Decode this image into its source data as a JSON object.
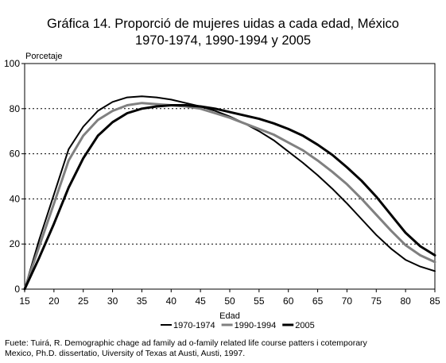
{
  "chart_data": {
    "type": "line",
    "title_line1": "Gráfica 14. Proporció de mujeres uidas a cada edad, México",
    "title_line2": "1970-1974, 1990-1994 y 2005",
    "ylabel": "Porcetaje",
    "xlabel": "Edad",
    "xlim": [
      15,
      85
    ],
    "ylim": [
      0,
      100
    ],
    "x_ticks": [
      15,
      20,
      25,
      30,
      35,
      40,
      45,
      50,
      55,
      60,
      65,
      70,
      75,
      80,
      85
    ],
    "y_ticks": [
      0,
      20,
      40,
      60,
      80,
      100
    ],
    "grid": "horizontal dotted",
    "legend_position": "bottom",
    "x": [
      15,
      17.5,
      20,
      22.5,
      25,
      27.5,
      30,
      32.5,
      35,
      37.5,
      40,
      42.5,
      45,
      47.5,
      50,
      52.5,
      55,
      57.5,
      60,
      62.5,
      65,
      67.5,
      70,
      72.5,
      75,
      77.5,
      80,
      82.5,
      85
    ],
    "series": [
      {
        "name": "1970-1974",
        "color": "#000000",
        "values": [
          0,
          22,
          42,
          62,
          72,
          79,
          83,
          85,
          85.5,
          85,
          84,
          82.5,
          81,
          79,
          76.5,
          73.5,
          70,
          66,
          61,
          56,
          50.5,
          44.5,
          38,
          31,
          24,
          18,
          13,
          10,
          8
        ]
      },
      {
        "name": "1990-1994",
        "color": "#808080",
        "values": [
          0,
          19,
          38,
          57,
          68,
          75,
          79,
          81.5,
          82.5,
          82,
          81.5,
          81,
          80,
          78,
          76,
          73.5,
          71,
          68.5,
          65,
          61.5,
          57,
          52,
          46.5,
          40,
          33,
          26,
          19.5,
          15,
          12
        ]
      },
      {
        "name": "2005",
        "color": "#000000",
        "values": [
          0,
          14,
          29,
          45,
          58,
          68,
          74,
          78,
          80,
          81,
          81.5,
          81.5,
          81,
          80,
          78.5,
          77,
          75.5,
          73.5,
          71,
          68,
          64,
          59.5,
          54,
          48,
          41,
          33,
          25,
          19,
          15
        ]
      }
    ],
    "source_line1": "Fuete: Tuirá, R. Demographic chage ad family ad o-family related life course patters i cotemporary",
    "source_line2": "Mexico, Ph.D. dissertatio, Uiversity of Texas at Austi, Austi, 1997."
  }
}
